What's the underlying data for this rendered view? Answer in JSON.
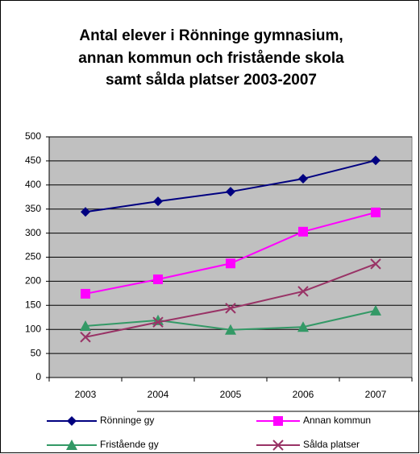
{
  "chart_data": {
    "type": "line",
    "title": [
      "Antal elever i Rönninge gymnasium,",
      "annan kommun och fristående skola",
      "samt sålda platser 2003-2007"
    ],
    "categories": [
      "2003",
      "2004",
      "2005",
      "2006",
      "2007"
    ],
    "series": [
      {
        "name": "Rönninge gy",
        "color": "#000080",
        "marker": "diamond",
        "values": [
          344,
          366,
          386,
          413,
          451
        ]
      },
      {
        "name": "Annan kommun",
        "color": "#ff00ff",
        "marker": "square",
        "values": [
          174,
          204,
          237,
          303,
          343
        ]
      },
      {
        "name": "Fristående gy",
        "color": "#339966",
        "marker": "triangle",
        "values": [
          107,
          119,
          99,
          105,
          139
        ]
      },
      {
        "name": "Sålda platser",
        "color": "#993366",
        "marker": "x",
        "values": [
          84,
          115,
          144,
          179,
          236
        ]
      }
    ],
    "ylim": [
      0,
      500
    ],
    "yticks": [
      0,
      50,
      100,
      150,
      200,
      250,
      300,
      350,
      400,
      450,
      500
    ],
    "grid": true,
    "legend": "bottom"
  }
}
